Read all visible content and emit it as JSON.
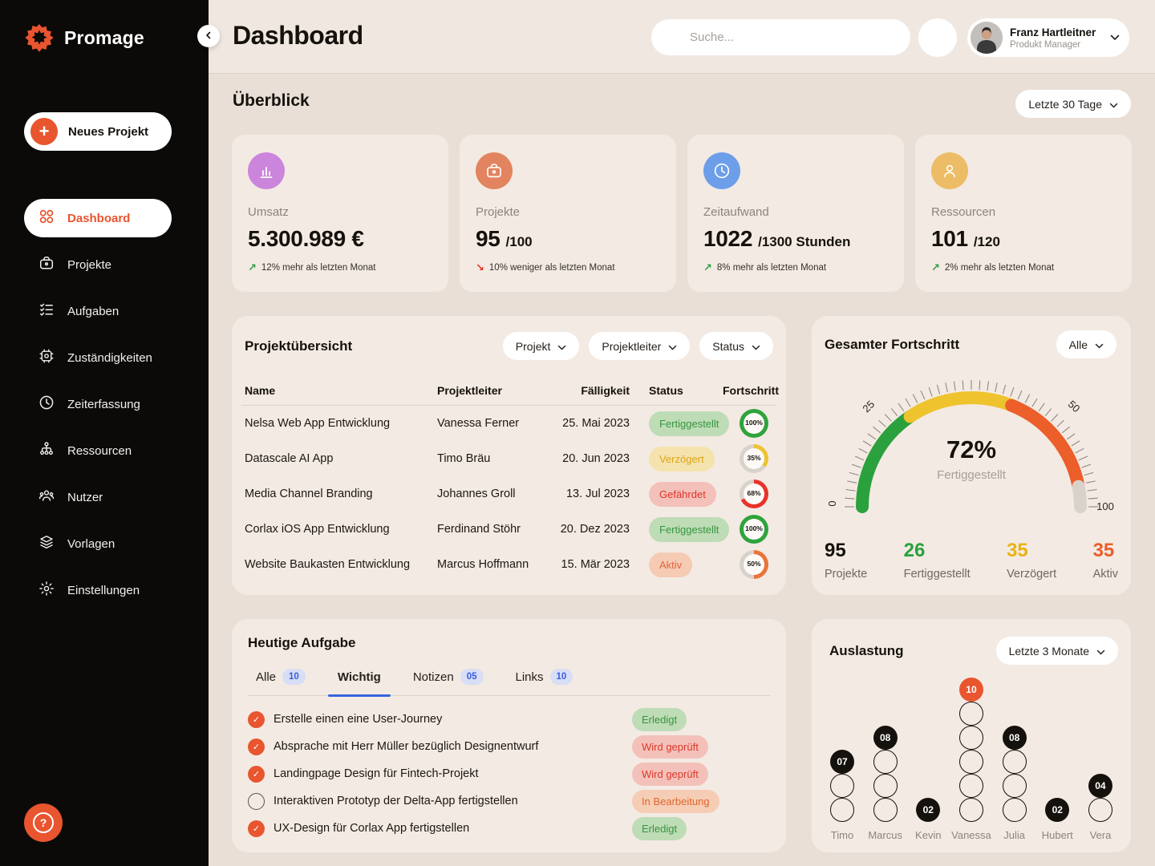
{
  "brand": {
    "name": "Promage",
    "accent_color": "#e8552f"
  },
  "sidebar": {
    "new_project_label": "Neues Projekt",
    "items": [
      {
        "label": "Dashboard",
        "icon": "grid-icon",
        "active": true
      },
      {
        "label": "Projekte",
        "icon": "briefcase-icon",
        "active": false
      },
      {
        "label": "Aufgaben",
        "icon": "checklist-icon",
        "active": false
      },
      {
        "label": "Zuständigkeiten",
        "icon": "chip-icon",
        "active": false
      },
      {
        "label": "Zeiterfassung",
        "icon": "clock-icon",
        "active": false
      },
      {
        "label": "Ressourcen",
        "icon": "hierarchy-icon",
        "active": false
      },
      {
        "label": "Nutzer",
        "icon": "users-icon",
        "active": false
      },
      {
        "label": "Vorlagen",
        "icon": "layers-icon",
        "active": false
      },
      {
        "label": "Einstellungen",
        "icon": "gear-icon",
        "active": false
      }
    ]
  },
  "topbar": {
    "title": "Dashboard",
    "search_placeholder": "Suche...",
    "user": {
      "name": "Franz Hartleitner",
      "role": "Produkt Manager"
    }
  },
  "overview": {
    "title": "Überblick",
    "range_filter": "Letzte 30 Tage",
    "cards": [
      {
        "label": "Umsatz",
        "value": "5.300.989 €",
        "suffix": "",
        "icon": "bar-chart-icon",
        "icon_bg": "#cb85dc",
        "trend": "up",
        "trend_text": "12% mehr als letzten Monat"
      },
      {
        "label": "Projekte",
        "value": "95",
        "suffix": "/100",
        "icon": "briefcase-icon",
        "icon_bg": "#e2845f",
        "trend": "down",
        "trend_text": "10% weniger als letzten Monat"
      },
      {
        "label": "Zeitaufwand",
        "value": "1022",
        "suffix": "/1300 Stunden",
        "icon": "clock-icon",
        "icon_bg": "#6d9ee9",
        "trend": "up",
        "trend_text": "8% mehr als letzten Monat"
      },
      {
        "label": "Ressourcen",
        "value": "101",
        "suffix": "/120",
        "icon": "person-icon",
        "icon_bg": "#ecbd66",
        "trend": "up",
        "trend_text": "2% mehr als letzten Monat"
      }
    ]
  },
  "project_table": {
    "title": "Projektübersicht",
    "filters": [
      "Projekt",
      "Projektleiter",
      "Status"
    ],
    "columns": [
      "Name",
      "Projektleiter",
      "Fälligkeit",
      "Status",
      "Fortschritt"
    ],
    "rows": [
      {
        "name": "Nelsa Web App Entwicklung",
        "leader": "Vanessa Ferner",
        "due": "25. Mai 2023",
        "status": "Fertiggestellt",
        "status_type": "done",
        "progress": 100,
        "progress_label": "100%",
        "ring_color": "#2fa33c"
      },
      {
        "name": "Datascale AI App",
        "leader": "Timo Bräu",
        "due": "20. Jun 2023",
        "status": "Verzögert",
        "status_type": "delayed",
        "progress": 35,
        "progress_label": "35%",
        "ring_color": "#eec331"
      },
      {
        "name": "Media Channel Branding",
        "leader": "Johannes Groll",
        "due": "13. Jul 2023",
        "status": "Gefährdet",
        "status_type": "risk",
        "progress": 68,
        "progress_label": "68%",
        "ring_color": "#e7342a"
      },
      {
        "name": "Corlax iOS App Entwicklung",
        "leader": "Ferdinand Stöhr",
        "due": "20. Dez 2023",
        "status": "Fertiggestellt",
        "status_type": "done",
        "progress": 100,
        "progress_label": "100%",
        "ring_color": "#2fa33c"
      },
      {
        "name": "Website Baukasten Entwicklung",
        "leader": "Marcus Hoffmann",
        "due": "15. Mär 2023",
        "status": "Aktiv",
        "status_type": "active",
        "progress": 50,
        "progress_label": "50%",
        "ring_color": "#e8743c"
      }
    ]
  },
  "progress_panel": {
    "title": "Gesamter Fortschritt",
    "filter": "Alle",
    "gauge": {
      "value_label": "72%",
      "caption": "Fertiggestellt",
      "tick_labels": [
        "0",
        "25",
        "50",
        "100"
      ],
      "segments": [
        {
          "color": "#2aa13d",
          "from": 0,
          "to": 31
        },
        {
          "color": "#eec32e",
          "from": 31,
          "to": 62
        },
        {
          "color": "#ec5e2a",
          "from": 62,
          "to": 94
        },
        {
          "color": "#d9d2cb",
          "from": 94,
          "to": 100
        }
      ]
    },
    "stats": [
      {
        "value": "95",
        "label": "Projekte",
        "color": "#15110d"
      },
      {
        "value": "26",
        "label": "Fertiggestellt",
        "color": "#2aa13d"
      },
      {
        "value": "35",
        "label": "Verzögert",
        "color": "#e9b215"
      },
      {
        "value": "35",
        "label": "Aktiv",
        "color": "#ec5e2a"
      }
    ],
    "chart_data": {
      "type": "gauge",
      "title": "Gesamter Fortschritt",
      "value": 72,
      "unit": "%",
      "axis_range": [
        0,
        100
      ],
      "axis_ticks": [
        0,
        25,
        50,
        100
      ],
      "segments_percent": {
        "green": [
          0,
          31
        ],
        "yellow": [
          31,
          62
        ],
        "orange": [
          62,
          94
        ],
        "empty": [
          94,
          100
        ]
      },
      "summary": {
        "Projekte": 95,
        "Fertiggestellt": 26,
        "Verzögert": 35,
        "Aktiv": 35
      }
    }
  },
  "tasks_panel": {
    "title": "Heutige Aufgabe",
    "tabs": [
      {
        "label": "Alle",
        "badge": "10",
        "active": false
      },
      {
        "label": "Wichtig",
        "badge": "",
        "active": true
      },
      {
        "label": "Notizen",
        "badge": "05",
        "active": false
      },
      {
        "label": "Links",
        "badge": "10",
        "active": false
      }
    ],
    "tasks": [
      {
        "text": "Erstelle einen eine User-Journey",
        "checked": true,
        "status": "Erledigt",
        "status_type": "done"
      },
      {
        "text": "Absprache mit Herr Müller bezüglich Designentwurf",
        "checked": true,
        "status": "Wird geprüft",
        "status_type": "review"
      },
      {
        "text": "Landingpage Design für Fintech-Projekt",
        "checked": true,
        "status": "Wird geprüft",
        "status_type": "review"
      },
      {
        "text": "Interaktiven Prototyp der Delta-App fertigstellen",
        "checked": false,
        "status": "In Bearbeitung",
        "status_type": "progress"
      },
      {
        "text": "UX-Design für Corlax App fertigstellen",
        "checked": true,
        "status": "Erledigt",
        "status_type": "done"
      }
    ]
  },
  "workload_panel": {
    "title": "Auslastung",
    "filter": "Letzte 3 Monate",
    "chart_data": {
      "type": "stacked-dot-column",
      "categories": [
        "Timo",
        "Marcus",
        "Kevin",
        "Vanessa",
        "Julia",
        "Hubert",
        "Vera"
      ],
      "values": [
        7,
        8,
        2,
        10,
        8,
        2,
        4
      ],
      "value_labels": [
        "07",
        "08",
        "02",
        "10",
        "08",
        "02",
        "04"
      ],
      "empty_dots": [
        2,
        3,
        0,
        5,
        3,
        0,
        1
      ],
      "highlight_index": 3,
      "highlight_color": "#e8552f",
      "dot_color": "#15110d"
    }
  }
}
